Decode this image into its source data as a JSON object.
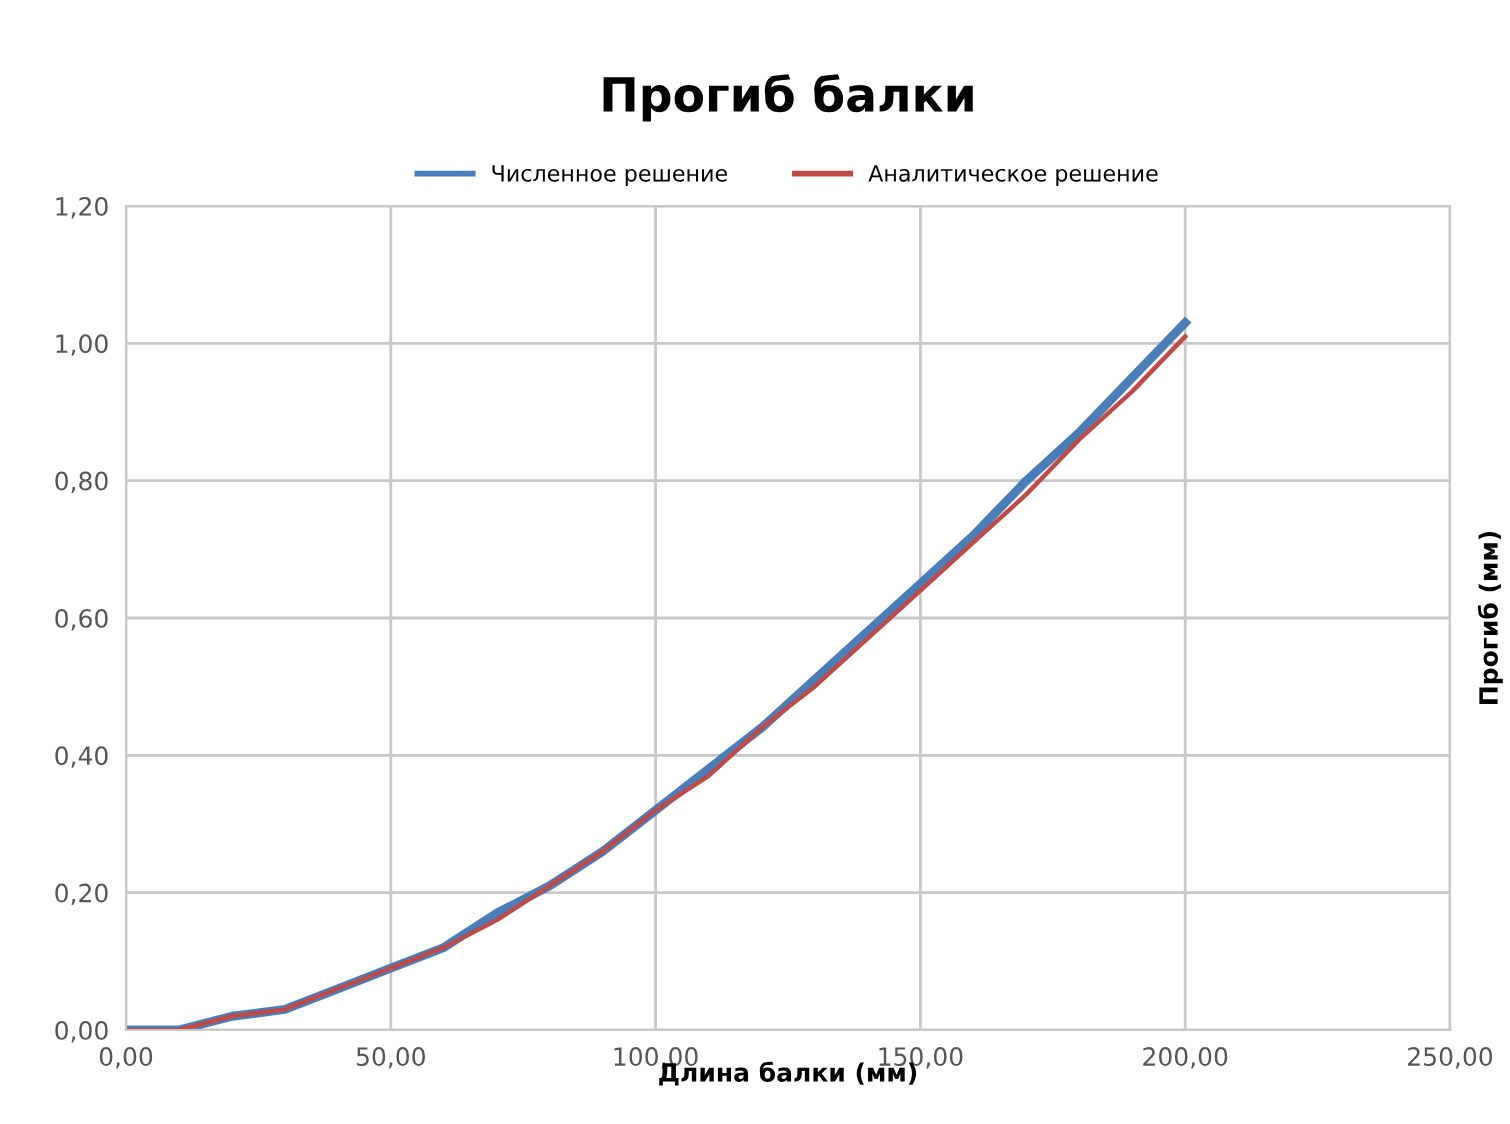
{
  "chart_data": {
    "type": "line",
    "title": "Прогиб балки",
    "xlabel": "Длина балки (мм)",
    "ylabel": "Прогиб (мм)",
    "x": [
      0,
      10,
      20,
      30,
      40,
      50,
      60,
      70,
      80,
      90,
      100,
      110,
      120,
      130,
      140,
      150,
      160,
      170,
      180,
      190,
      200
    ],
    "series": [
      {
        "name": "Численное решение",
        "color": "#4a7ebb",
        "values": [
          0,
          0,
          0.02,
          0.03,
          0.06,
          0.09,
          0.12,
          0.17,
          0.21,
          0.26,
          0.32,
          0.38,
          0.44,
          0.51,
          0.58,
          0.65,
          0.72,
          0.8,
          0.87,
          0.95,
          1.03
        ]
      },
      {
        "name": "Аналитическое решение",
        "color": "#be4b48",
        "values": [
          0,
          0,
          0.02,
          0.03,
          0.06,
          0.09,
          0.12,
          0.16,
          0.21,
          0.26,
          0.32,
          0.37,
          0.44,
          0.5,
          0.57,
          0.64,
          0.71,
          0.78,
          0.86,
          0.93,
          1.01
        ]
      }
    ],
    "xlim": [
      0,
      250
    ],
    "ylim": [
      0,
      1.2
    ],
    "xticks": [
      {
        "value": 0,
        "label": "0,00"
      },
      {
        "value": 50,
        "label": "50,00"
      },
      {
        "value": 100,
        "label": "100,00"
      },
      {
        "value": 150,
        "label": "150,00"
      },
      {
        "value": 200,
        "label": "200,00"
      },
      {
        "value": 250,
        "label": "250,00"
      }
    ],
    "yticks": [
      {
        "value": 0,
        "label": "0,00"
      },
      {
        "value": 0.2,
        "label": "0,20"
      },
      {
        "value": 0.4,
        "label": "0,40"
      },
      {
        "value": 0.6,
        "label": "0,60"
      },
      {
        "value": 0.8,
        "label": "0,80"
      },
      {
        "value": 1.0,
        "label": "1,00"
      },
      {
        "value": 1.2,
        "label": "1,20"
      }
    ],
    "grid": true,
    "legend": "top",
    "marker": "none",
    "line_style": "solid"
  }
}
